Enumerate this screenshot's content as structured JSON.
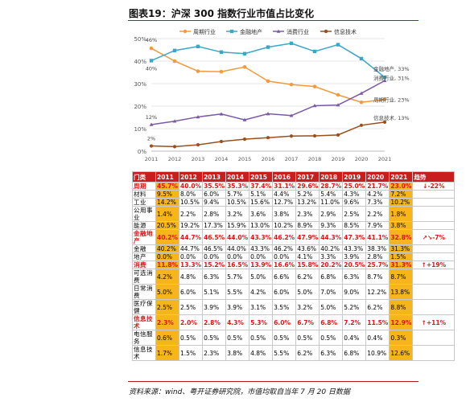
{
  "figure": {
    "title": "图表19：沪深 300 指数行业市值占比变化",
    "source": "资料来源：wind、粤开证券研究院，市值均取自当年 7 月 20 日数据"
  },
  "chart_data": {
    "type": "line",
    "x": [
      "2011",
      "2012",
      "2013",
      "2014",
      "2015",
      "2016",
      "2017",
      "2018",
      "2019",
      "2020",
      "2021"
    ],
    "ylim": [
      0,
      50
    ],
    "yticks": [
      "0%",
      "10%",
      "20%",
      "30%",
      "40%",
      "50%"
    ],
    "legend_position": "top-right",
    "series": [
      {
        "name": "周期行业",
        "color": "#f39a3a",
        "values": [
          45.7,
          40.0,
          35.5,
          35.3,
          37.4,
          31.1,
          29.6,
          28.7,
          25.0,
          21.7,
          23.0
        ],
        "start_label": "46%",
        "end_label": "周期行业, 23%"
      },
      {
        "name": "金融地产",
        "color": "#3aa6c8",
        "values": [
          40.2,
          44.7,
          46.5,
          44.0,
          43.3,
          46.2,
          47.9,
          44.3,
          47.3,
          41.1,
          32.8
        ],
        "start_label": "40%",
        "end_label": "金融地产, 33%"
      },
      {
        "name": "消费行业",
        "color": "#7a5aa6",
        "values": [
          11.8,
          13.3,
          15.2,
          16.5,
          13.9,
          16.6,
          15.8,
          20.2,
          20.5,
          25.7,
          31.3
        ],
        "start_label": "12%",
        "end_label": "消费行业, 31%"
      },
      {
        "name": "信息技术",
        "color": "#9a4f1e",
        "values": [
          2.3,
          2.0,
          2.8,
          4.3,
          5.3,
          6.0,
          6.7,
          6.8,
          7.2,
          11.5,
          12.9
        ],
        "start_label": "2%",
        "end_label": "信息技术, 13%"
      }
    ]
  },
  "table": {
    "header": [
      "门类",
      "2011",
      "2012",
      "2013",
      "2014",
      "2015",
      "2016",
      "2017",
      "2018",
      "2019",
      "2020",
      "2021",
      "趋势"
    ],
    "rows": [
      {
        "sector": "周期",
        "values": [
          "45.7%",
          "40.0%",
          "35.5%",
          "35.3%",
          "37.4%",
          "31.1%",
          "29.6%",
          "28.7%",
          "25.0%",
          "21.7%",
          "23.0%"
        ],
        "trend": "↓-22%",
        "red": true
      },
      {
        "sector": "材料",
        "values": [
          "9.5%",
          "8.0%",
          "6.0%",
          "5.7%",
          "5.1%",
          "4.4%",
          "5.2%",
          "5.4%",
          "4.3%",
          "4.2%",
          "7.2%"
        ],
        "trend": "",
        "red": false
      },
      {
        "sector": "工业",
        "values": [
          "14.2%",
          "10.5%",
          "9.4%",
          "10.5%",
          "15.6%",
          "12.7%",
          "13.2%",
          "11.0%",
          "9.6%",
          "7.3%",
          "10.2%"
        ],
        "trend": "",
        "red": false
      },
      {
        "sector": "公用事业",
        "values": [
          "1.4%",
          "2.2%",
          "2.8%",
          "3.2%",
          "3.6%",
          "3.8%",
          "2.3%",
          "2.9%",
          "2.5%",
          "2.2%",
          "1.8%"
        ],
        "trend": "",
        "red": false
      },
      {
        "sector": "能源",
        "values": [
          "20.5%",
          "19.2%",
          "17.3%",
          "15.9%",
          "13.0%",
          "10.2%",
          "8.9%",
          "9.3%",
          "8.5%",
          "7.9%",
          "3.8%"
        ],
        "trend": "",
        "red": false
      },
      {
        "sector": "金融地产",
        "values": [
          "40.2%",
          "44.7%",
          "46.5%",
          "44.0%",
          "43.3%",
          "46.2%",
          "47.9%",
          "44.3%",
          "47.3%",
          "41.1%",
          "32.8%"
        ],
        "trend": "↗↘-7%",
        "red": true
      },
      {
        "sector": "金融",
        "values": [
          "40.2%",
          "44.7%",
          "46.5%",
          "44.0%",
          "43.3%",
          "46.2%",
          "43.6%",
          "40.2%",
          "43.3%",
          "38.3%",
          "31.3%"
        ],
        "trend": "",
        "red": false
      },
      {
        "sector": "地产",
        "values": [
          "0.0%",
          "0.0%",
          "0.0%",
          "0.0%",
          "0.0%",
          "0.0%",
          "4.1%",
          "3.3%",
          "3.9%",
          "2.8%",
          "1.5%"
        ],
        "trend": "",
        "red": false
      },
      {
        "sector": "消费",
        "values": [
          "11.8%",
          "13.3%",
          "15.2%",
          "16.5%",
          "13.9%",
          "16.6%",
          "15.8%",
          "20.2%",
          "20.5%",
          "25.7%",
          "31.3%"
        ],
        "trend": "↑+19%",
        "red": true
      },
      {
        "sector": "可选消费",
        "values": [
          "4.2%",
          "4.8%",
          "6.3%",
          "5.7%",
          "5.0%",
          "6.6%",
          "6.2%",
          "6.8%",
          "6.3%",
          "8.7%",
          "8.7%"
        ],
        "trend": "",
        "red": false
      },
      {
        "sector": "日常消费",
        "values": [
          "5.0%",
          "6.0%",
          "5.1%",
          "5.5%",
          "4.2%",
          "6.0%",
          "5.0%",
          "7.0%",
          "9.0%",
          "12.2%",
          "13.8%"
        ],
        "trend": "",
        "red": false
      },
      {
        "sector": "医疗保健",
        "values": [
          "2.5%",
          "2.5%",
          "3.9%",
          "3.9%",
          "3.1%",
          "3.5%",
          "3.2%",
          "5.0%",
          "5.2%",
          "6.2%",
          "8.8%"
        ],
        "trend": "",
        "red": false
      },
      {
        "sector": "信息技术",
        "values": [
          "2.3%",
          "2.0%",
          "2.8%",
          "4.3%",
          "5.3%",
          "6.0%",
          "6.7%",
          "6.8%",
          "7.2%",
          "11.5%",
          "12.9%"
        ],
        "trend": "↑+11%",
        "red": true
      },
      {
        "sector": "电信服务",
        "values": [
          "0.6%",
          "0.5%",
          "0.5%",
          "0.5%",
          "0.5%",
          "0.5%",
          "0.5%",
          "0.5%",
          "0.4%",
          "0.4%",
          "0.3%"
        ],
        "trend": "",
        "red": false
      },
      {
        "sector": "信息技术",
        "values": [
          "1.7%",
          "1.5%",
          "2.3%",
          "3.8%",
          "4.8%",
          "5.5%",
          "6.2%",
          "6.3%",
          "6.8%",
          "10.9%",
          "12.6%"
        ],
        "trend": "",
        "red": false
      }
    ]
  }
}
